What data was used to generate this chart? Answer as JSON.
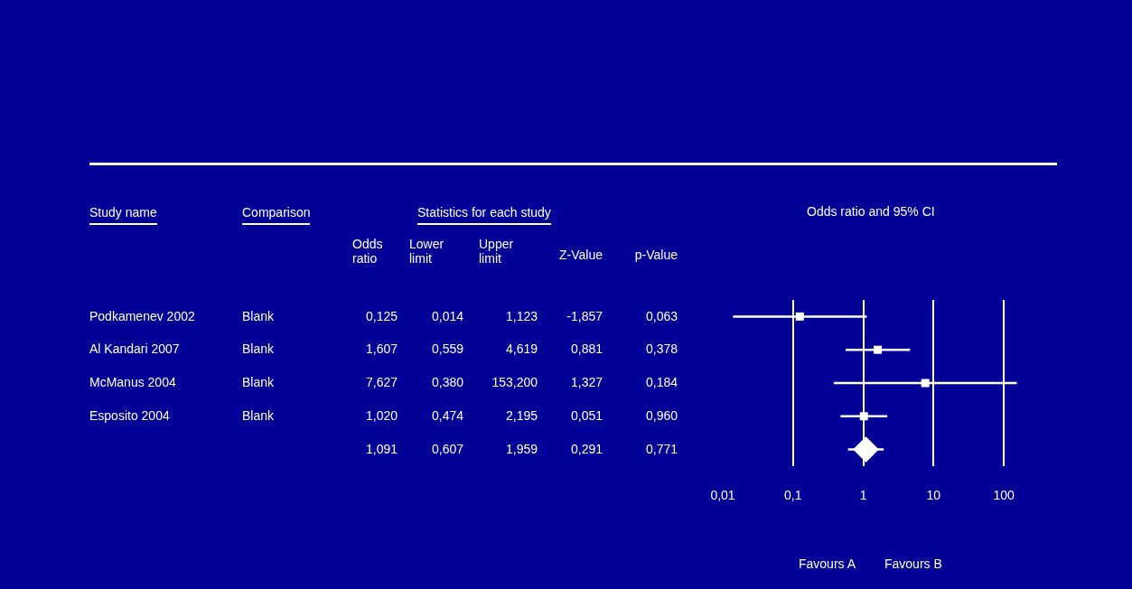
{
  "chart_data": [
    {
      "type": "other",
      "annotations": [
        "Study name",
        "Comparison",
        "Statistics for each study"
      ],
      "categories": [
        "Odds ratio",
        "Lower limit",
        "Upper limit",
        "Z-Value",
        "p-Value"
      ],
      "y_categories": [
        "Podkamenev 2002",
        "Al Kandari 2007",
        "McManus 2004",
        "Esposito 2004",
        null
      ],
      "y2_categories": [
        "Blank",
        "Blank",
        "Blank",
        "Blank",
        null
      ],
      "cell_labels": [
        [
          "0,125",
          "0,014",
          "1,123",
          "-1,857",
          "0,063"
        ],
        [
          "1,607",
          "0,559",
          "4,619",
          "0,881",
          "0,378"
        ],
        [
          "7,627",
          "0,380",
          "153,200",
          "1,327",
          "0,184"
        ],
        [
          "1,020",
          "0,474",
          "2,195",
          "0,051",
          "0,960"
        ],
        [
          "1,091",
          "0,607",
          "1,959",
          "0,291",
          "0,771"
        ]
      ]
    },
    {
      "type": "scatter",
      "orientation": "horizontal",
      "title": "Odds ratio and 95% CI",
      "categories": [
        null,
        null,
        null,
        null,
        null
      ],
      "series": [
        {
          "color": "#ffffff",
          "marker": "square",
          "values": [
            0.125,
            1.607,
            7.627,
            1.02,
            null
          ],
          "errors": [
            [
              0.014,
              1.123
            ],
            [
              0.559,
              4.619
            ],
            [
              0.38,
              153.2
            ],
            [
              0.474,
              2.195
            ],
            null
          ]
        },
        {
          "color": "#ffffff",
          "marker": "diamond",
          "values": [
            null,
            null,
            null,
            null,
            1.091
          ],
          "errors": [
            null,
            null,
            null,
            null,
            [
              0.607,
              1.959
            ]
          ]
        }
      ],
      "log": "x",
      "xlim": [
        0.01,
        160
      ],
      "xticks": [
        {
          "value": 0.01,
          "label": "0,01"
        },
        {
          "value": 0.1,
          "label": "0,1"
        },
        1,
        10,
        100
      ],
      "grid": "x",
      "annotations": [
        "Favours A",
        "Favours B"
      ]
    }
  ]
}
